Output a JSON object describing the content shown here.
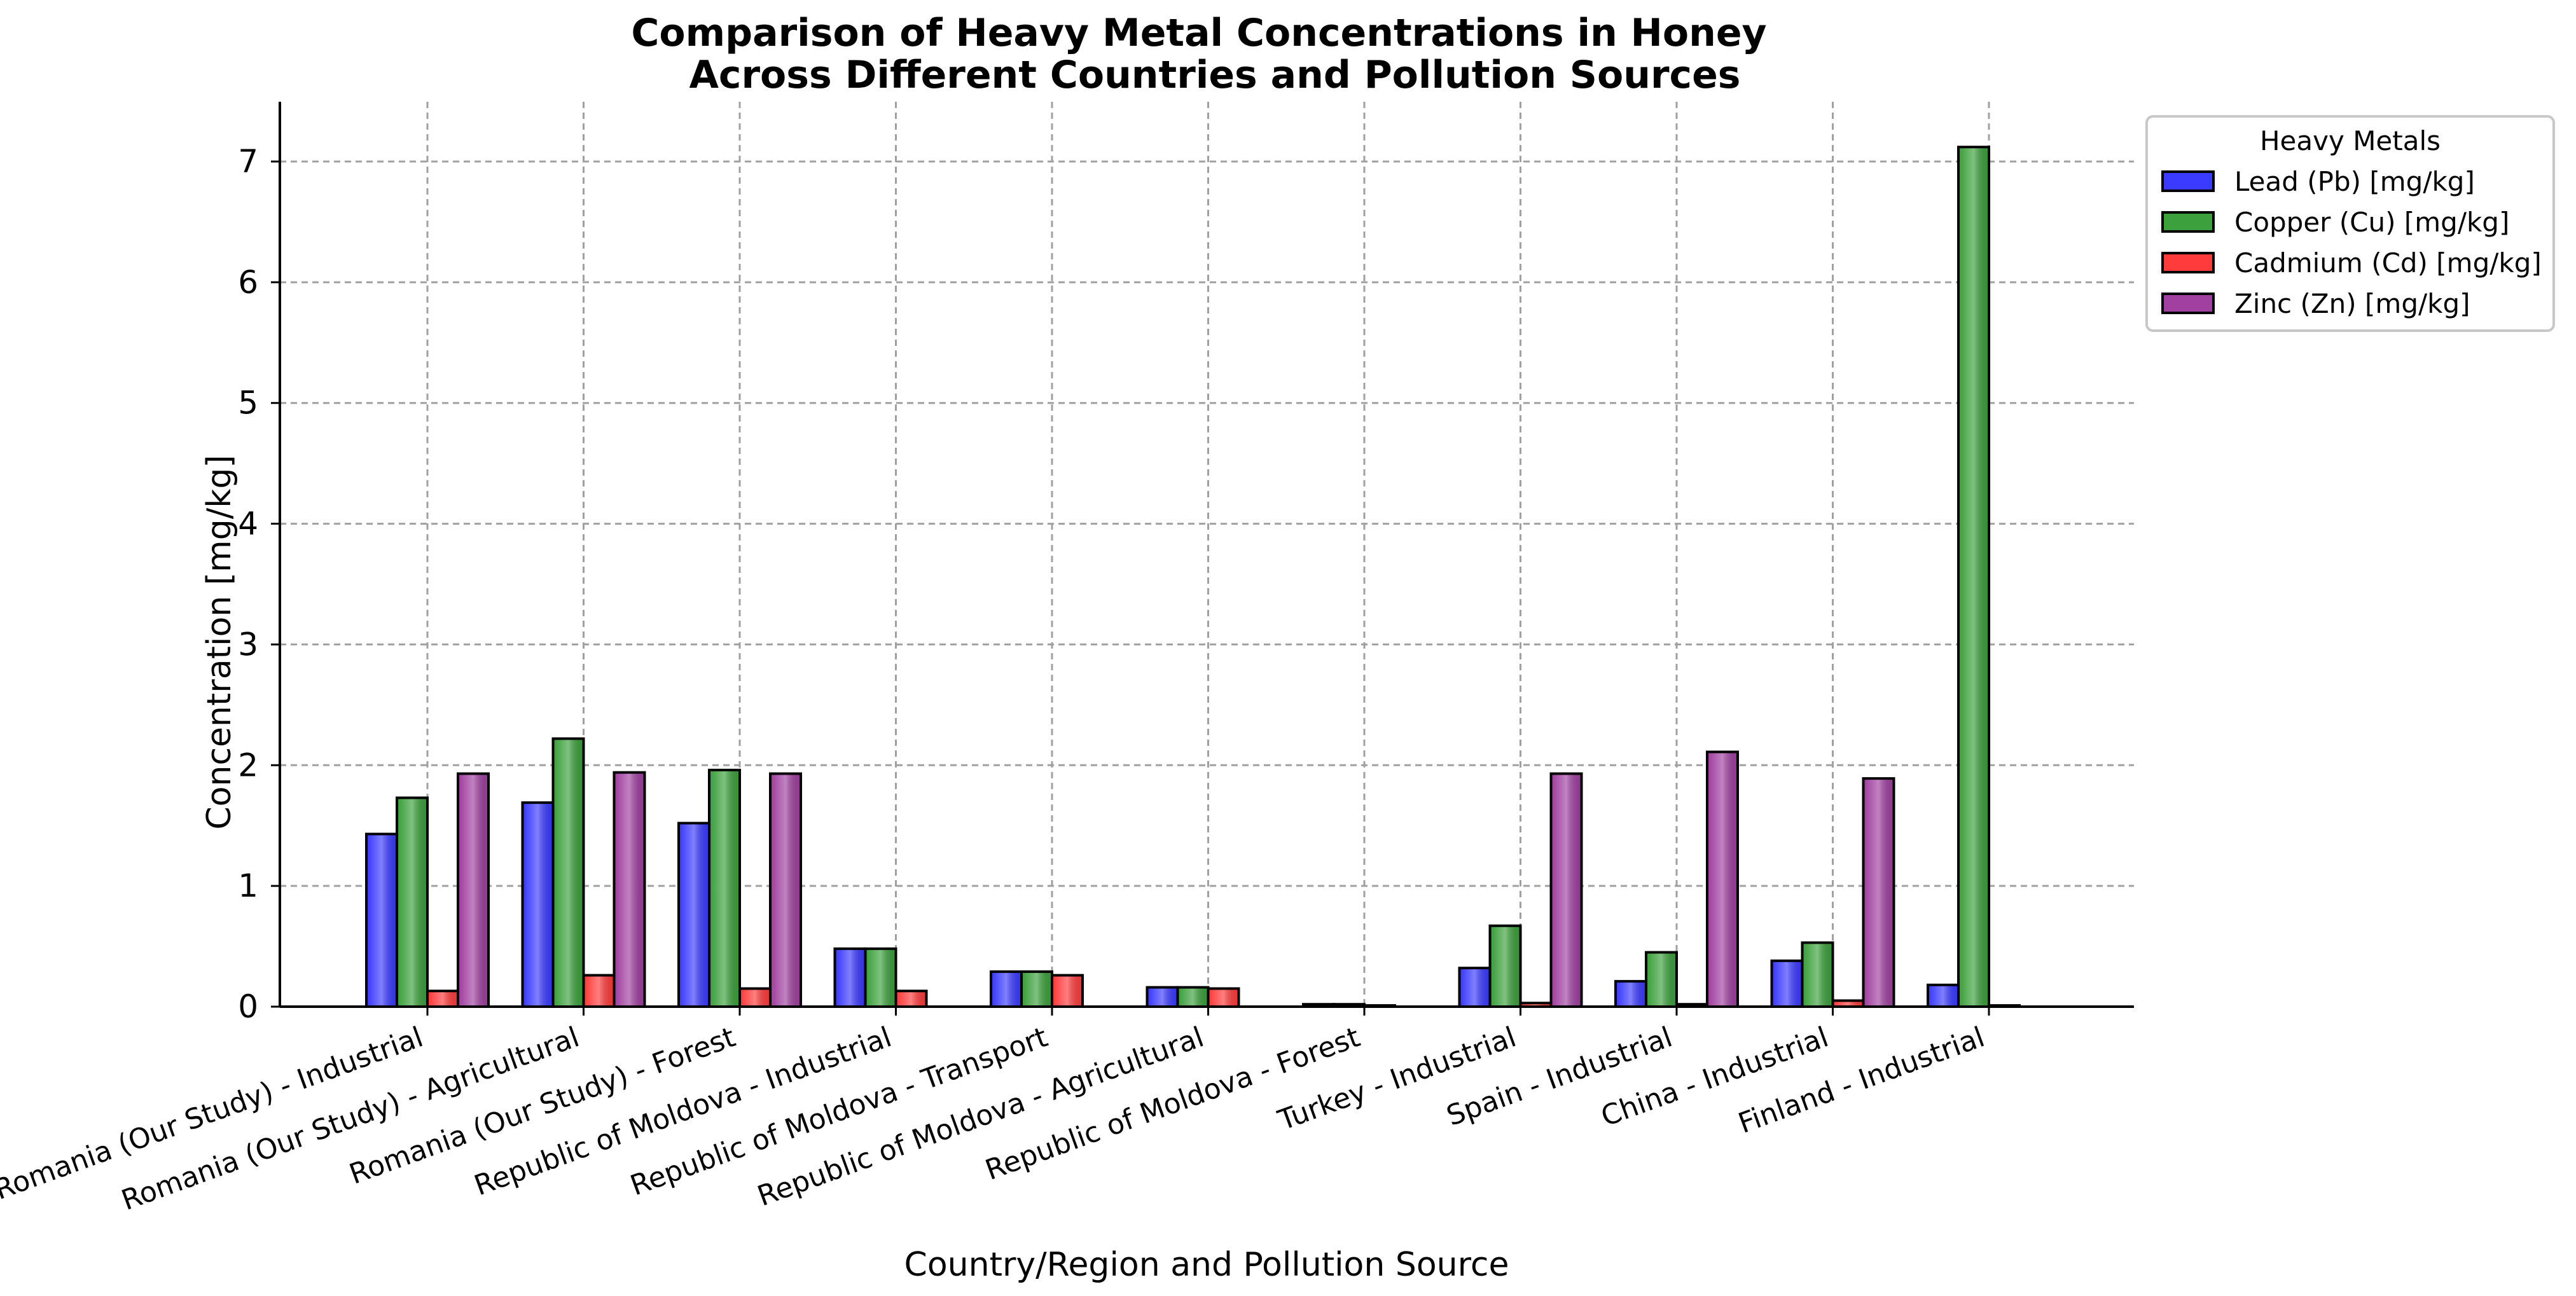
{
  "chart_data": {
    "type": "bar",
    "title_lines": [
      "Comparison of Heavy Metal Concentrations in Honey",
      "Across Different Countries and Pollution Sources"
    ],
    "xlabel": "Country/Region and Pollution Source",
    "ylabel": "Concentration [mg/kg]",
    "ylim": [
      0,
      7.5
    ],
    "yticks": [
      0,
      1,
      2,
      3,
      4,
      5,
      6,
      7
    ],
    "grid": true,
    "legend": {
      "title": "Heavy Metals",
      "position": "outside-top-right"
    },
    "categories": [
      "Romania (Our Study) - Industrial",
      "Romania (Our Study) - Agricultural",
      "Romania (Our Study) - Forest",
      "Republic of Moldova - Industrial",
      "Republic of Moldova - Transport",
      "Republic of Moldova - Agricultural",
      "Republic of Moldova - Forest",
      "Turkey - Industrial",
      "Spain - Industrial",
      "China - Industrial",
      "Finland - Industrial"
    ],
    "series": [
      {
        "name": "Lead (Pb) [mg/kg]",
        "color": "#3b3bff",
        "values": [
          1.43,
          1.69,
          1.52,
          0.48,
          0.29,
          0.16,
          0.02,
          0.32,
          0.21,
          0.38,
          0.18
        ]
      },
      {
        "name": "Copper (Cu) [mg/kg]",
        "color": "#3ca03c",
        "values": [
          1.73,
          2.22,
          1.96,
          0.48,
          0.29,
          0.16,
          0.02,
          0.67,
          0.45,
          0.53,
          7.12
        ]
      },
      {
        "name": "Cadmium (Cd) [mg/kg]",
        "color": "#ff3b3b",
        "values": [
          0.13,
          0.26,
          0.15,
          0.13,
          0.26,
          0.15,
          0.01,
          0.03,
          0.02,
          0.05,
          0.01
        ]
      },
      {
        "name": "Zinc (Zn) [mg/kg]",
        "color": "#a040a0",
        "values": [
          1.93,
          1.94,
          1.93,
          0.0,
          0.0,
          0.0,
          0.0,
          1.93,
          2.11,
          1.89,
          0.0
        ]
      }
    ]
  }
}
